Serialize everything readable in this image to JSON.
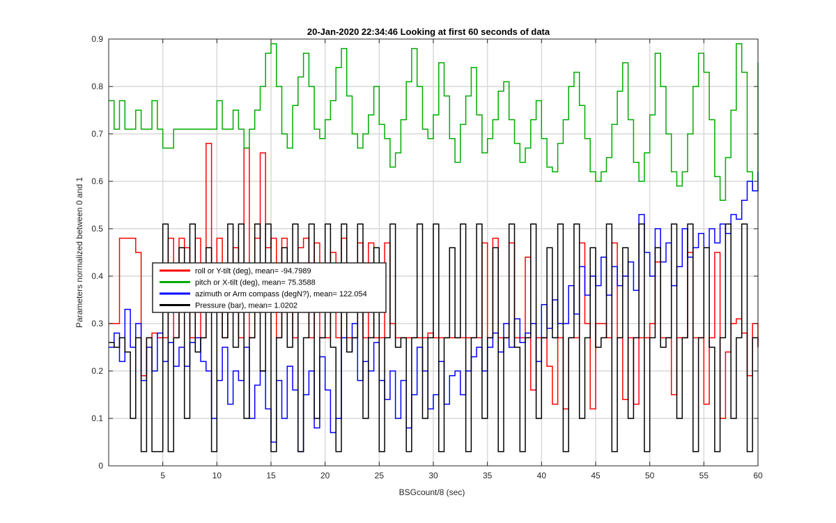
{
  "window": {
    "background": "#ffffff"
  },
  "chart_data": {
    "type": "line",
    "title": "20-Jan-2020 22:34:46 Looking at first 60 seconds of data",
    "xlabel": "BSGcount/8 (sec)",
    "ylabel": "Parameters normalized between 0 and 1",
    "xlim": [
      0,
      60
    ],
    "ylim": [
      0,
      0.9
    ],
    "xticks": [
      5,
      10,
      15,
      20,
      25,
      30,
      35,
      40,
      45,
      50,
      55,
      60
    ],
    "xtick_labels": [
      "5",
      "10",
      "15",
      "20",
      "25",
      "30",
      "35",
      "40",
      "45",
      "50",
      "55",
      "60"
    ],
    "yticks": [
      0,
      0.1,
      0.2,
      0.3,
      0.4,
      0.5,
      0.6,
      0.7,
      0.8,
      0.9
    ],
    "ytick_labels": [
      "0",
      "0.1",
      "0.2",
      "0.3",
      "0.4",
      "0.5",
      "0.6",
      "0.7",
      "0.8",
      "0.9"
    ],
    "grid": true,
    "legend_position": "center-left",
    "series": [
      {
        "name": "roll or Y-tilt (deg), mean= -94.7989",
        "color": "#ff0000",
        "x": [
          0,
          1,
          2,
          2.5,
          3,
          3.5,
          4,
          4.5,
          5,
          5.5,
          6,
          6.5,
          7,
          7.5,
          8,
          8.5,
          9,
          9.5,
          10,
          10.5,
          11,
          11.5,
          12,
          12.5,
          13,
          13.5,
          14,
          14.5,
          15,
          15.5,
          16,
          16.5,
          17,
          17.5,
          18,
          18.5,
          19,
          19.5,
          20,
          20.5,
          21,
          21.5,
          22,
          22.5,
          23,
          23.5,
          24,
          24.5,
          25,
          25.5,
          26,
          26.5,
          27,
          27.5,
          28,
          28.5,
          29,
          29.5,
          30,
          30.5,
          31,
          31.5,
          32,
          32.5,
          33,
          33.5,
          34,
          34.5,
          35,
          35.5,
          36,
          36.5,
          37,
          37.5,
          38,
          38.5,
          39,
          39.5,
          40,
          40.5,
          41,
          41.5,
          42,
          42.5,
          43,
          43.5,
          44,
          44.5,
          45,
          45.5,
          46,
          46.5,
          47,
          47.5,
          48,
          48.5,
          49,
          49.5,
          50,
          50.5,
          51,
          51.5,
          52,
          52.5,
          53,
          53.5,
          54,
          54.5,
          55,
          55.5,
          56,
          56.5,
          57,
          57.5,
          58,
          58.5,
          59,
          59.5,
          60
        ],
        "values": [
          0.3,
          0.48,
          0.48,
          0.45,
          0.19,
          0.27,
          0.28,
          0.27,
          0.27,
          0.48,
          0.27,
          0.48,
          0.46,
          0.27,
          0.48,
          0.27,
          0.68,
          0.36,
          0.48,
          0.27,
          0.36,
          0.46,
          0.27,
          0.67,
          0.27,
          0.48,
          0.66,
          0.46,
          0.48,
          0.27,
          0.48,
          0.36,
          0.27,
          0.46,
          0.48,
          0.27,
          0.47,
          0.27,
          0.27,
          0.45,
          0.27,
          0.48,
          0.27,
          0.27,
          0.47,
          0.27,
          0.47,
          0.27,
          0.27,
          0.47,
          0.3,
          0.27,
          0.27,
          0.27,
          0.27,
          0.27,
          0.27,
          0.28,
          0.27,
          0.27,
          0.27,
          0.27,
          0.27,
          0.27,
          0.27,
          0.27,
          0.27,
          0.47,
          0.27,
          0.48,
          0.27,
          0.27,
          0.47,
          0.27,
          0.27,
          0.44,
          0.16,
          0.27,
          0.27,
          0.21,
          0.13,
          0.27,
          0.12,
          0.27,
          0.27,
          0.47,
          0.3,
          0.12,
          0.3,
          0.3,
          0.27,
          0.47,
          0.27,
          0.14,
          0.27,
          0.13,
          0.27,
          0.27,
          0.3,
          0.43,
          0.27,
          0.27,
          0.15,
          0.27,
          0.27,
          0.45,
          0.27,
          0.27,
          0.13,
          0.27,
          0.45,
          0.1,
          0.24,
          0.3,
          0.31,
          0.28,
          0.19,
          0.3,
          0.25
        ]
      },
      {
        "name": "pitch or X-tilt (deg), mean= 75.3588",
        "color": "#00aa00",
        "x": [
          0,
          0.5,
          1,
          1.5,
          2,
          2.5,
          3,
          3.5,
          4,
          4.5,
          5,
          5.5,
          6,
          6.5,
          7,
          7.5,
          8,
          8.5,
          9,
          9.5,
          10,
          10.5,
          11,
          11.5,
          12,
          12.5,
          13,
          13.5,
          14,
          14.5,
          15,
          15.5,
          16,
          16.5,
          17,
          17.5,
          18,
          18.5,
          19,
          19.5,
          20,
          20.5,
          21,
          21.5,
          22,
          22.5,
          23,
          23.5,
          24,
          24.5,
          25,
          25.5,
          26,
          26.5,
          27,
          27.5,
          28,
          28.5,
          29,
          29.5,
          30,
          30.5,
          31,
          31.5,
          32,
          32.5,
          33,
          33.5,
          34,
          34.5,
          35,
          35.5,
          36,
          36.5,
          37,
          37.5,
          38,
          38.5,
          39,
          39.5,
          40,
          40.5,
          41,
          41.5,
          42,
          42.5,
          43,
          43.5,
          44,
          44.5,
          45,
          45.5,
          46,
          46.5,
          47,
          47.5,
          48,
          48.5,
          49,
          49.5,
          50,
          50.5,
          51,
          51.5,
          52,
          52.5,
          53,
          53.5,
          54,
          54.5,
          55,
          55.5,
          56,
          56.5,
          57,
          57.5,
          58,
          58.5,
          59,
          59.5,
          60
        ],
        "values": [
          0.77,
          0.71,
          0.77,
          0.71,
          0.71,
          0.75,
          0.71,
          0.71,
          0.77,
          0.71,
          0.67,
          0.67,
          0.71,
          0.71,
          0.71,
          0.71,
          0.71,
          0.71,
          0.71,
          0.71,
          0.77,
          0.71,
          0.71,
          0.75,
          0.71,
          0.67,
          0.71,
          0.75,
          0.8,
          0.87,
          0.89,
          0.8,
          0.7,
          0.67,
          0.76,
          0.82,
          0.87,
          0.8,
          0.71,
          0.69,
          0.73,
          0.77,
          0.84,
          0.88,
          0.78,
          0.7,
          0.67,
          0.7,
          0.74,
          0.8,
          0.72,
          0.69,
          0.63,
          0.66,
          0.73,
          0.81,
          0.88,
          0.8,
          0.71,
          0.69,
          0.74,
          0.85,
          0.78,
          0.69,
          0.64,
          0.72,
          0.78,
          0.84,
          0.74,
          0.66,
          0.69,
          0.73,
          0.79,
          0.81,
          0.73,
          0.68,
          0.64,
          0.67,
          0.73,
          0.77,
          0.69,
          0.63,
          0.62,
          0.68,
          0.73,
          0.8,
          0.83,
          0.76,
          0.69,
          0.62,
          0.6,
          0.62,
          0.65,
          0.72,
          0.79,
          0.85,
          0.73,
          0.64,
          0.6,
          0.66,
          0.74,
          0.87,
          0.8,
          0.7,
          0.62,
          0.59,
          0.62,
          0.7,
          0.8,
          0.87,
          0.83,
          0.73,
          0.61,
          0.56,
          0.65,
          0.75,
          0.89,
          0.83,
          0.62,
          0.58,
          0.85
        ]
      },
      {
        "name": "azimuth or Arm compass (degN?), mean= 122.054",
        "color": "#0000ff",
        "x": [
          0,
          0.5,
          1,
          1.5,
          2,
          2.5,
          3,
          3.5,
          4,
          4.5,
          5,
          5.5,
          6,
          6.5,
          7,
          7.5,
          8,
          8.5,
          9,
          9.5,
          10,
          10.5,
          11,
          11.5,
          12,
          12.5,
          13,
          13.5,
          14,
          14.5,
          15,
          15.5,
          16,
          16.5,
          17,
          17.5,
          18,
          18.5,
          19,
          19.5,
          20,
          20.5,
          21,
          21.5,
          22,
          22.5,
          23,
          23.5,
          24,
          24.5,
          25,
          25.5,
          26,
          26.5,
          27,
          27.5,
          28,
          28.5,
          29,
          29.5,
          30,
          30.5,
          31,
          31.5,
          32,
          32.5,
          33,
          33.5,
          34,
          34.5,
          35,
          35.5,
          36,
          36.5,
          37,
          37.5,
          38,
          38.5,
          39,
          39.5,
          40,
          40.5,
          41,
          41.5,
          42,
          42.5,
          43,
          43.5,
          44,
          44.5,
          45,
          45.5,
          46,
          46.5,
          47,
          47.5,
          48,
          48.5,
          49,
          49.5,
          50,
          50.5,
          51,
          51.5,
          52,
          52.5,
          53,
          53.5,
          54,
          54.5,
          55,
          55.5,
          56,
          56.5,
          57,
          57.5,
          58,
          58.5,
          59,
          59.5,
          60
        ],
        "values": [
          0.25,
          0.28,
          0.22,
          0.33,
          0.25,
          0.3,
          0.18,
          0.25,
          0.2,
          0.28,
          0.22,
          0.26,
          0.21,
          0.25,
          0.21,
          0.26,
          0.27,
          0.22,
          0.2,
          0.1,
          0.18,
          0.25,
          0.13,
          0.2,
          0.18,
          0.25,
          0.1,
          0.17,
          0.2,
          0.12,
          0.05,
          0.18,
          0.1,
          0.21,
          0.16,
          0.03,
          0.15,
          0.2,
          0.08,
          0.23,
          0.16,
          0.07,
          0.1,
          0.27,
          0.24,
          0.3,
          0.18,
          0.22,
          0.2,
          0.26,
          0.18,
          0.14,
          0.2,
          0.1,
          0.18,
          0.08,
          0.15,
          0.25,
          0.2,
          0.12,
          0.15,
          0.22,
          0.13,
          0.19,
          0.2,
          0.15,
          0.2,
          0.23,
          0.25,
          0.2,
          0.25,
          0.28,
          0.24,
          0.3,
          0.25,
          0.31,
          0.26,
          0.28,
          0.3,
          0.22,
          0.34,
          0.29,
          0.35,
          0.3,
          0.3,
          0.38,
          0.32,
          0.42,
          0.36,
          0.4,
          0.38,
          0.44,
          0.36,
          0.42,
          0.38,
          0.4,
          0.43,
          0.37,
          0.53,
          0.45,
          0.4,
          0.5,
          0.43,
          0.47,
          0.38,
          0.42,
          0.5,
          0.44,
          0.46,
          0.49,
          0.46,
          0.5,
          0.47,
          0.51,
          0.49,
          0.53,
          0.52,
          0.56,
          0.6,
          0.58,
          0.62
        ]
      },
      {
        "name": "Pressure (bar), mean= 1.0202",
        "color": "#000000",
        "x": [
          0,
          0.5,
          1,
          1.5,
          2,
          2.5,
          3,
          3.5,
          4,
          4.5,
          5,
          5.5,
          6,
          6.5,
          7,
          7.5,
          8,
          8.5,
          9,
          9.5,
          10,
          10.5,
          11,
          11.5,
          12,
          12.5,
          13,
          13.5,
          14,
          14.5,
          15,
          15.5,
          16,
          16.5,
          17,
          17.5,
          18,
          18.5,
          19,
          19.5,
          20,
          20.5,
          21,
          21.5,
          22,
          22.5,
          23,
          23.5,
          24,
          24.5,
          25,
          25.5,
          26,
          26.5,
          27,
          27.5,
          28,
          28.5,
          29,
          29.5,
          30,
          30.5,
          31,
          31.5,
          32,
          32.5,
          33,
          33.5,
          34,
          34.5,
          35,
          35.5,
          36,
          36.5,
          37,
          37.5,
          38,
          38.5,
          39,
          39.5,
          40,
          40.5,
          41,
          41.5,
          42,
          42.5,
          43,
          43.5,
          44,
          44.5,
          45,
          45.5,
          46,
          46.5,
          47,
          47.5,
          48,
          48.5,
          49,
          49.5,
          50,
          50.5,
          51,
          51.5,
          52,
          52.5,
          53,
          53.5,
          54,
          54.5,
          55,
          55.5,
          56,
          56.5,
          57,
          57.5,
          58,
          58.5,
          59,
          59.5,
          60
        ],
        "values": [
          0.26,
          0.25,
          0.27,
          0.24,
          0.1,
          0.27,
          0.03,
          0.27,
          0.03,
          0.03,
          0.51,
          0.03,
          0.27,
          0.46,
          0.1,
          0.51,
          0.24,
          0.27,
          0.46,
          0.03,
          0.41,
          0.27,
          0.51,
          0.25,
          0.51,
          0.1,
          0.27,
          0.51,
          0.2,
          0.51,
          0.03,
          0.27,
          0.46,
          0.25,
          0.51,
          0.03,
          0.27,
          0.51,
          0.1,
          0.27,
          0.51,
          0.25,
          0.03,
          0.51,
          0.24,
          0.27,
          0.51,
          0.1,
          0.27,
          0.46,
          0.03,
          0.27,
          0.51,
          0.25,
          0.27,
          0.03,
          0.27,
          0.51,
          0.1,
          0.27,
          0.51,
          0.03,
          0.27,
          0.46,
          0.27,
          0.51,
          0.03,
          0.27,
          0.51,
          0.1,
          0.27,
          0.46,
          0.03,
          0.27,
          0.51,
          0.25,
          0.03,
          0.27,
          0.51,
          0.1,
          0.27,
          0.46,
          0.27,
          0.51,
          0.03,
          0.27,
          0.51,
          0.1,
          0.27,
          0.46,
          0.25,
          0.27,
          0.51,
          0.03,
          0.27,
          0.46,
          0.1,
          0.27,
          0.51,
          0.03,
          0.27,
          0.46,
          0.25,
          0.27,
          0.51,
          0.1,
          0.27,
          0.51,
          0.03,
          0.27,
          0.46,
          0.25,
          0.03,
          0.27,
          0.51,
          0.1,
          0.27,
          0.51,
          0.03,
          0.27,
          0.25
        ]
      }
    ]
  }
}
